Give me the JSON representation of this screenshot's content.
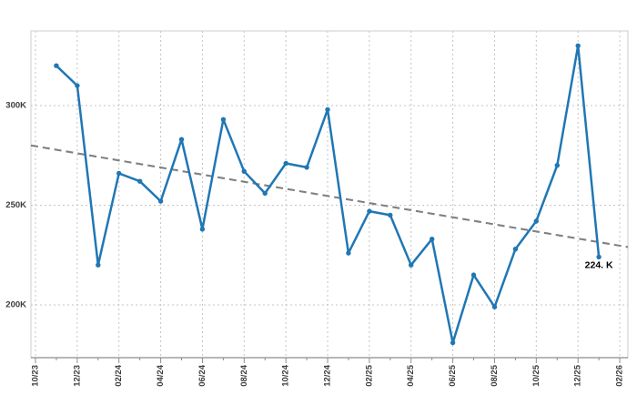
{
  "chart_data": {
    "type": "line",
    "title": "",
    "xlabel": "",
    "ylabel": "",
    "legend": "none",
    "grid": "dotted",
    "x_range_months": [
      "10/23",
      "02/26"
    ],
    "x_tick_labels": [
      "10/23",
      "12/23",
      "02/24",
      "04/24",
      "06/24",
      "08/24",
      "10/24",
      "12/24",
      "02/25",
      "04/25",
      "06/25",
      "08/25",
      "10/25",
      "12/25",
      "02/26"
    ],
    "y_ticks": [
      200,
      250,
      300
    ],
    "y_tick_labels": [
      "200K",
      "250K",
      "300K"
    ],
    "ylim": [
      174,
      338
    ],
    "series": [
      {
        "name": "monthly-values",
        "unit": "K",
        "color": "#1f77b4",
        "marker": "circle",
        "months": [
          "11/23",
          "12/23",
          "01/24",
          "02/24",
          "03/24",
          "04/24",
          "05/24",
          "06/24",
          "07/24",
          "08/24",
          "09/24",
          "10/24",
          "11/24",
          "12/24",
          "01/25",
          "02/25",
          "03/25",
          "04/25",
          "05/25",
          "06/25",
          "07/25",
          "08/25",
          "09/25",
          "10/25",
          "11/25",
          "12/25",
          "01/26"
        ],
        "values": [
          320,
          310,
          220,
          266,
          262,
          252,
          283,
          238,
          293,
          267,
          256,
          271,
          269,
          298,
          226,
          247,
          245,
          220,
          233,
          181,
          215,
          199,
          228,
          242,
          270,
          330,
          224
        ]
      }
    ],
    "trend_line": {
      "name": "linear-trend",
      "style": "dashed",
      "color": "#808080",
      "start_value": 280,
      "end_value": 229
    },
    "annotation": {
      "text": "224. K",
      "month": "01/26",
      "value": 224
    },
    "colors": {
      "line": "#1f77b4",
      "trend": "#808080",
      "grid": "#c4c4c4",
      "frame": "#cccccc",
      "axis": "#8c8c8c",
      "label": "#3d3d3d",
      "annotation": "#000000",
      "background": "#ffffff"
    }
  }
}
